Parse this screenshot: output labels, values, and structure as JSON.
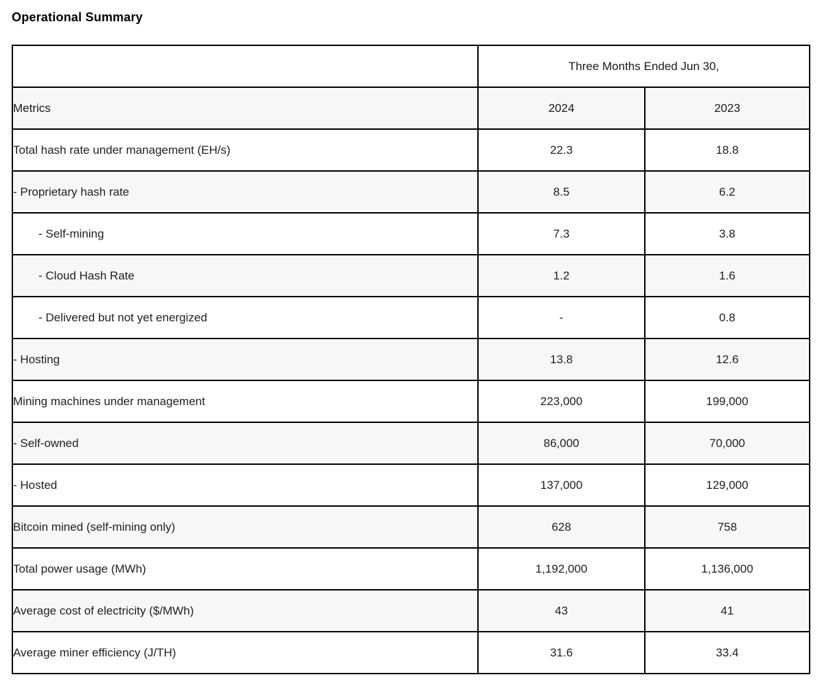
{
  "title": "Operational Summary",
  "table": {
    "period_header": "Three Months Ended Jun 30,",
    "metrics_header": "Metrics",
    "year_columns": [
      "2024",
      "2023"
    ],
    "rows": [
      {
        "metric": "Total hash rate under management (EH/s)",
        "indent": 0,
        "v2024": "22.3",
        "v2023": "18.8"
      },
      {
        "metric": "- Proprietary hash rate",
        "indent": 1,
        "v2024": "8.5",
        "v2023": "6.2"
      },
      {
        "metric": "- Self-mining",
        "indent": 2,
        "v2024": "7.3",
        "v2023": "3.8"
      },
      {
        "metric": "- Cloud Hash Rate",
        "indent": 2,
        "v2024": "1.2",
        "v2023": "1.6"
      },
      {
        "metric": "- Delivered but not yet energized",
        "indent": 2,
        "v2024": "-",
        "v2023": "0.8"
      },
      {
        "metric": "- Hosting",
        "indent": 1,
        "v2024": "13.8",
        "v2023": "12.6"
      },
      {
        "metric": "Mining machines under management",
        "indent": 0,
        "v2024": "223,000",
        "v2023": "199,000"
      },
      {
        "metric": "- Self-owned",
        "indent": 1,
        "v2024": "86,000",
        "v2023": "70,000"
      },
      {
        "metric": "- Hosted",
        "indent": 1,
        "v2024": "137,000",
        "v2023": "129,000"
      },
      {
        "metric": "Bitcoin mined (self-mining only)",
        "indent": 0,
        "v2024": "628",
        "v2023": "758"
      },
      {
        "metric": "Total power usage (MWh)",
        "indent": 0,
        "v2024": "1,192,000",
        "v2023": "1,136,000"
      },
      {
        "metric": "Average cost of electricity ($/MWh)",
        "indent": 0,
        "v2024": "43",
        "v2023": "41"
      },
      {
        "metric": "Average miner efficiency (J/TH)",
        "indent": 0,
        "v2024": "31.6",
        "v2023": "33.4"
      }
    ],
    "colors": {
      "border": "#000000",
      "stripe": "#f7f7f7",
      "text": "#212121"
    }
  }
}
